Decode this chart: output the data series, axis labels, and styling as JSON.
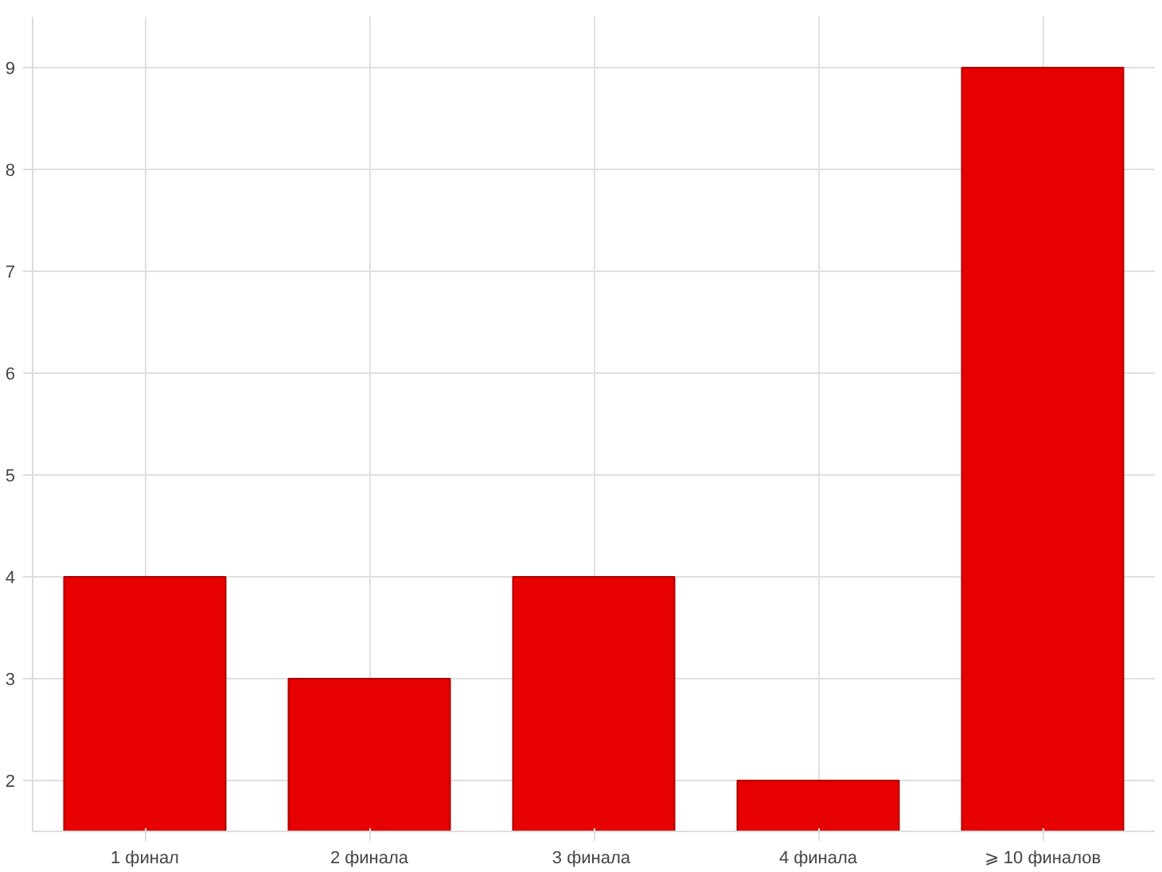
{
  "chart_data": {
    "type": "bar",
    "categories": [
      "1 финал",
      "2 финала",
      "3  финала",
      "4 финала",
      "⩾ 10 финалов"
    ],
    "values": [
      4,
      3,
      4,
      2,
      9
    ],
    "color": "#e60000",
    "ylim": [
      1.5,
      9.5
    ],
    "yticks": [
      2,
      3,
      4,
      5,
      6,
      7,
      8,
      9
    ],
    "grid": true
  }
}
